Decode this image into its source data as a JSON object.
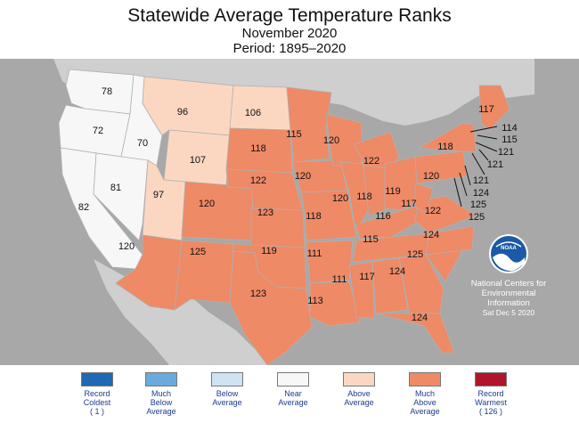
{
  "header": {
    "title": "Statewide Average Temperature Ranks",
    "subtitle": "November 2020",
    "period": "Period: 1895–2020"
  },
  "colors": {
    "record_coldest": "#1f68b4",
    "much_below": "#6aaadc",
    "below": "#cfe3f3",
    "near": "#f7f7f7",
    "above": "#fbd7c2",
    "much_above": "#ee8a66",
    "record_warmest": "#b0162b",
    "background": "#a8a8a8"
  },
  "ranks": [
    {
      "state": "WA",
      "rank": "78"
    },
    {
      "state": "OR",
      "rank": "72"
    },
    {
      "state": "ID",
      "rank": "70"
    },
    {
      "state": "CA",
      "rank": "82"
    },
    {
      "state": "NV",
      "rank": "81"
    },
    {
      "state": "MT",
      "rank": "96"
    },
    {
      "state": "WY",
      "rank": "107"
    },
    {
      "state": "UT",
      "rank": "97"
    },
    {
      "state": "AZ",
      "rank": "120"
    },
    {
      "state": "CO",
      "rank": "120"
    },
    {
      "state": "NM",
      "rank": "125"
    },
    {
      "state": "ND",
      "rank": "106"
    },
    {
      "state": "SD",
      "rank": "118"
    },
    {
      "state": "NE",
      "rank": "122"
    },
    {
      "state": "KS",
      "rank": "123"
    },
    {
      "state": "OK",
      "rank": "119"
    },
    {
      "state": "TX",
      "rank": "123"
    },
    {
      "state": "MN",
      "rank": "115"
    },
    {
      "state": "IA",
      "rank": "120"
    },
    {
      "state": "MO",
      "rank": "118"
    },
    {
      "state": "AR",
      "rank": "111"
    },
    {
      "state": "LA",
      "rank": "113"
    },
    {
      "state": "WI",
      "rank": "120"
    },
    {
      "state": "IL",
      "rank": "120"
    },
    {
      "state": "MI",
      "rank": "122"
    },
    {
      "state": "IN",
      "rank": "118"
    },
    {
      "state": "OH",
      "rank": "119"
    },
    {
      "state": "KY",
      "rank": "116"
    },
    {
      "state": "TN",
      "rank": "115"
    },
    {
      "state": "MS",
      "rank": "111"
    },
    {
      "state": "AL",
      "rank": "117"
    },
    {
      "state": "GA",
      "rank": "124"
    },
    {
      "state": "FL",
      "rank": "124"
    },
    {
      "state": "SC",
      "rank": "125"
    },
    {
      "state": "NC",
      "rank": "124"
    },
    {
      "state": "VA",
      "rank": "122"
    },
    {
      "state": "WV",
      "rank": "117"
    },
    {
      "state": "PA",
      "rank": "120"
    },
    {
      "state": "NY",
      "rank": "118"
    },
    {
      "state": "ME",
      "rank": "117"
    },
    {
      "state": "VT",
      "rank": "114"
    },
    {
      "state": "NH",
      "rank": "115"
    },
    {
      "state": "MA",
      "rank": "121"
    },
    {
      "state": "RI",
      "rank": "121"
    },
    {
      "state": "CT",
      "rank": "121"
    },
    {
      "state": "NJ",
      "rank": "124"
    },
    {
      "state": "DE",
      "rank": "125"
    },
    {
      "state": "MD",
      "rank": "125"
    }
  ],
  "ncei": {
    "logo": "NOAA",
    "line1": "National Centers for",
    "line2": "Environmental",
    "line3": "Information",
    "date": "Sat Dec  5 2020"
  },
  "legend": [
    {
      "label1": "Record",
      "label2": "Coldest",
      "label3": "( 1 )",
      "color": "#1f68b4"
    },
    {
      "label1": "Much",
      "label2": "Below",
      "label3": "Average",
      "color": "#6aaadc"
    },
    {
      "label1": "Below",
      "label2": "Average",
      "label3": "",
      "color": "#cfe3f3"
    },
    {
      "label1": "Near",
      "label2": "Average",
      "label3": "",
      "color": "#f7f7f7"
    },
    {
      "label1": "Above",
      "label2": "Average",
      "label3": "",
      "color": "#fbd7c2"
    },
    {
      "label1": "Much",
      "label2": "Above",
      "label3": "Average",
      "color": "#ee8a66"
    },
    {
      "label1": "Record",
      "label2": "Warmest",
      "label3": "( 126 )",
      "color": "#b0162b"
    }
  ]
}
